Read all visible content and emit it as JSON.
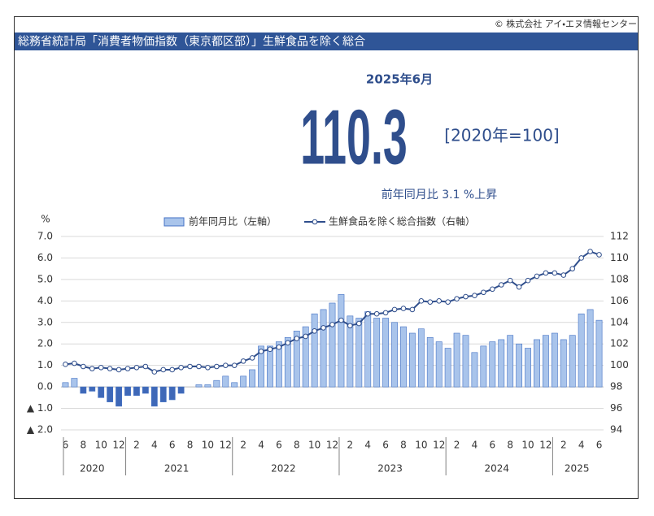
{
  "header": {
    "copyright": "© 株式会社 アイ・エヌ情報センター",
    "title": "総務省統計局「消費者物価指数（東京都区部）」生鮮食品を除く総合",
    "period": "2025年6月",
    "value": "110.3",
    "base": "[2020年=100]",
    "change": "前年同月比  3.1 %上昇"
  },
  "chart_data": {
    "type": "combo",
    "y_unit": "%",
    "categories": [
      "6",
      null,
      "8",
      null,
      "10",
      null,
      "12",
      null,
      "2",
      null,
      "4",
      null,
      "6",
      null,
      "8",
      null,
      "10",
      null,
      "12",
      null,
      "2",
      null,
      "4",
      null,
      "6",
      null,
      "8",
      null,
      "10",
      null,
      "12",
      null,
      "2",
      null,
      "4",
      null,
      "6",
      null,
      "8",
      null,
      "10",
      null,
      "12",
      null,
      "2",
      null,
      "4",
      null,
      "6",
      null,
      "8",
      null,
      "10",
      null,
      "12",
      null,
      "2",
      null,
      "4",
      null,
      "6"
    ],
    "years": [
      "2020",
      "2021",
      "2022",
      "2023",
      "2024",
      "2025"
    ],
    "series": [
      {
        "name": "前年同月比（左軸）",
        "type": "bar",
        "color": "#a9c4eb",
        "negative_color": "#3e68b8",
        "edge_color": "#4472c4",
        "values": [
          0.2,
          0.4,
          -0.3,
          -0.2,
          -0.5,
          -0.7,
          -0.9,
          -0.4,
          -0.4,
          -0.3,
          -0.9,
          -0.7,
          -0.6,
          -0.3,
          0.0,
          0.1,
          0.1,
          0.3,
          0.5,
          0.2,
          0.5,
          0.8,
          1.9,
          1.9,
          2.1,
          2.3,
          2.6,
          2.8,
          3.4,
          3.6,
          3.9,
          4.3,
          3.3,
          3.2,
          3.5,
          3.2,
          3.2,
          3.0,
          2.8,
          2.5,
          2.7,
          2.3,
          2.1,
          1.8,
          2.5,
          2.4,
          1.6,
          1.9,
          2.1,
          2.2,
          2.4,
          2.0,
          1.8,
          2.2,
          2.4,
          2.5,
          2.2,
          2.4,
          3.4,
          3.6,
          3.1
        ]
      },
      {
        "name": "生鮮食品を除く総合指数（右軸）",
        "type": "line",
        "axis": "y2",
        "color": "#2f4e8c",
        "values": [
          100.1,
          100.2,
          99.9,
          99.7,
          99.8,
          99.7,
          99.6,
          99.7,
          99.8,
          99.9,
          99.4,
          99.6,
          99.6,
          99.8,
          99.9,
          99.9,
          99.8,
          99.9,
          100.0,
          100.0,
          100.4,
          100.7,
          101.3,
          101.5,
          101.7,
          102.1,
          102.5,
          102.7,
          103.2,
          103.5,
          103.8,
          104.2,
          103.7,
          103.9,
          104.8,
          104.8,
          104.9,
          105.2,
          105.3,
          105.2,
          106.0,
          105.9,
          106.0,
          105.9,
          106.2,
          106.4,
          106.5,
          106.8,
          107.1,
          107.5,
          107.9,
          107.3,
          107.9,
          108.3,
          108.6,
          108.6,
          108.4,
          109.0,
          110.0,
          110.6,
          110.3
        ]
      }
    ],
    "ylim": [
      -2,
      7
    ],
    "yticks": [
      {
        "value": 7,
        "label": "7.0"
      },
      {
        "value": 6,
        "label": "6.0"
      },
      {
        "value": 5,
        "label": "5.0"
      },
      {
        "value": 4,
        "label": "4.0"
      },
      {
        "value": 3,
        "label": "3.0"
      },
      {
        "value": 2,
        "label": "2.0"
      },
      {
        "value": 1,
        "label": "1.0"
      },
      {
        "value": 0,
        "label": "0.0"
      },
      {
        "value": -1,
        "label": "▲ 1.0"
      },
      {
        "value": -2,
        "label": "▲ 2.0"
      }
    ],
    "y2lim": [
      94,
      112
    ],
    "y2ticks": [
      112,
      110,
      108,
      106,
      104,
      102,
      100,
      98,
      96,
      94
    ],
    "grid": true
  }
}
